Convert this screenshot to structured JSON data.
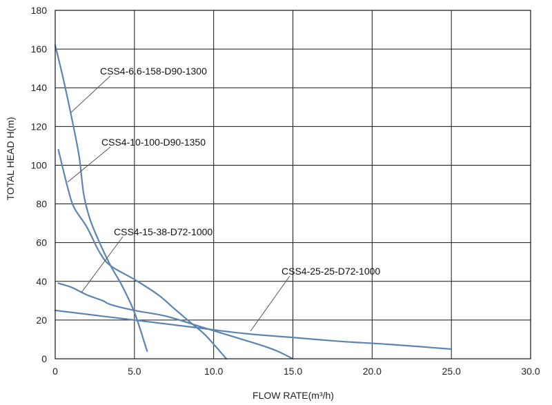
{
  "chart_data": {
    "type": "line",
    "title": "",
    "xlabel": "FLOW RATE(m³/h)",
    "ylabel": "TOTAL HEAD H(m)",
    "xlim": [
      0,
      30
    ],
    "ylim": [
      0,
      180
    ],
    "x_ticks": [
      "0",
      "5.0",
      "10.0",
      "15.0",
      "20.0",
      "25.0",
      "30.0"
    ],
    "y_ticks": [
      "0",
      "20",
      "40",
      "60",
      "80",
      "100",
      "120",
      "140",
      "160",
      "180"
    ],
    "grid": true,
    "line_color": "#5b84b1",
    "series": [
      {
        "name": "CSS4-6.6-158-D90-1300",
        "points": [
          [
            0,
            162
          ],
          [
            0.5,
            145
          ],
          [
            1.0,
            126
          ],
          [
            1.5,
            105
          ],
          [
            1.8,
            85
          ],
          [
            2.2,
            72
          ],
          [
            2.8,
            60
          ],
          [
            3.5,
            48
          ],
          [
            4.2,
            38
          ],
          [
            5.0,
            24
          ],
          [
            5.8,
            4
          ]
        ]
      },
      {
        "name": "CSS4-10-100-D90-1350",
        "points": [
          [
            0.2,
            108
          ],
          [
            0.8,
            88
          ],
          [
            1.2,
            78
          ],
          [
            2.0,
            68
          ],
          [
            2.8,
            55
          ],
          [
            3.5,
            48
          ],
          [
            5.0,
            41
          ],
          [
            6.5,
            33
          ],
          [
            7.5,
            26
          ],
          [
            8.5,
            19
          ],
          [
            9.5,
            12
          ],
          [
            10.8,
            0
          ]
        ]
      },
      {
        "name": "CSS4-15-38-D72-1000",
        "points": [
          [
            0.2,
            39
          ],
          [
            1.0,
            37
          ],
          [
            2.0,
            33
          ],
          [
            3.0,
            30
          ],
          [
            3.5,
            28
          ],
          [
            5.0,
            25
          ],
          [
            7.0,
            22
          ],
          [
            9.0,
            17
          ],
          [
            11.0,
            12
          ],
          [
            13.0,
            7
          ],
          [
            14.0,
            4
          ],
          [
            15.0,
            0
          ]
        ]
      },
      {
        "name": "CSS4-25-25-D72-1000",
        "points": [
          [
            0,
            25
          ],
          [
            3.0,
            22
          ],
          [
            6.0,
            19
          ],
          [
            9.0,
            16
          ],
          [
            12.0,
            13
          ],
          [
            15.0,
            11
          ],
          [
            18.0,
            9
          ],
          [
            21.0,
            7.5
          ],
          [
            25.0,
            5
          ]
        ]
      }
    ]
  }
}
